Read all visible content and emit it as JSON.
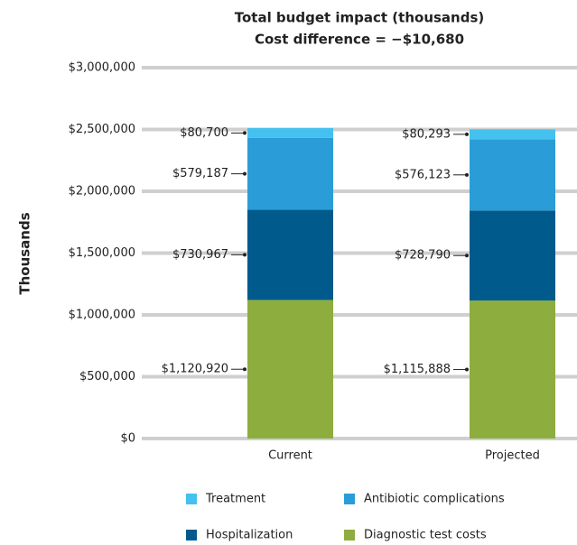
{
  "chart_data": {
    "type": "stacked-bar",
    "title": "Total budget impact (thousands)",
    "subtitle": "Cost difference = −$10,680",
    "y_label": "Thousands",
    "categories": [
      "Current",
      "Projected"
    ],
    "series": [
      {
        "name": "Diagnostic test costs",
        "color": "#8dad3e",
        "values": [
          1120920,
          1115888
        ],
        "value_labels": [
          "$1,120,920",
          "$1,115,888"
        ]
      },
      {
        "name": "Hospitalization",
        "color": "#005a8c",
        "values": [
          730967,
          728790
        ],
        "value_labels": [
          "$730,967",
          "$728,790"
        ]
      },
      {
        "name": "Antibiotic complications",
        "color": "#2a9dd8",
        "values": [
          579187,
          576123
        ],
        "value_labels": [
          "$579,187",
          "$576,123"
        ]
      },
      {
        "name": "Treatment",
        "color": "#44c1ef",
        "values": [
          80700,
          80293
        ],
        "value_labels": [
          "$80,700",
          "$80,293"
        ]
      }
    ],
    "ylim": [
      0,
      3000000
    ],
    "yticks": [
      {
        "value": 0,
        "label": "$0"
      },
      {
        "value": 500000,
        "label": "$500,000"
      },
      {
        "value": 1000000,
        "label": "$1,000,000"
      },
      {
        "value": 1500000,
        "label": "$1,500,000"
      },
      {
        "value": 2000000,
        "label": "$2,000,000"
      },
      {
        "value": 2500000,
        "label": "$2,500,000"
      },
      {
        "value": 3000000,
        "label": "$3,000,000"
      }
    ],
    "grid": true
  }
}
